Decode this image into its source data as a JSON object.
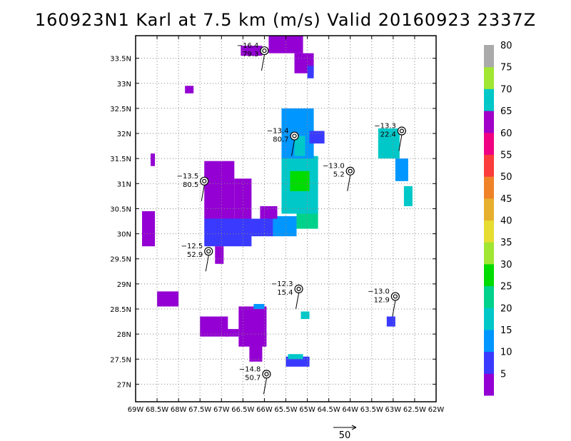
{
  "chart_data": {
    "type": "map",
    "title": "160923N1 Karl at 7.5 km (m/s) Valid 20160923 2337Z",
    "lon_ticks": [
      "69W",
      "68.5W",
      "68W",
      "67.5W",
      "67W",
      "66.5W",
      "66W",
      "65.5W",
      "65W",
      "64.5W",
      "64W",
      "63.5W",
      "63W",
      "62.5W",
      "62W"
    ],
    "lon_values": [
      -69,
      -68.5,
      -68,
      -67.5,
      -67,
      -66.5,
      -66,
      -65.5,
      -65,
      -64.5,
      -64,
      -63.5,
      -63,
      -62.5,
      -62
    ],
    "lat_ticks": [
      "27N",
      "27.5N",
      "28N",
      "28.5N",
      "29N",
      "29.5N",
      "30N",
      "30.5N",
      "31N",
      "31.5N",
      "32N",
      "32.5N",
      "33N",
      "33.5N"
    ],
    "lat_values": [
      27,
      27.5,
      28,
      28.5,
      29,
      29.5,
      30,
      30.5,
      31,
      31.5,
      32,
      32.5,
      33,
      33.5
    ],
    "xlim": [
      -69,
      -62
    ],
    "ylim": [
      26.65,
      33.95
    ],
    "grid": true,
    "colorbar": {
      "labels": [
        "5",
        "10",
        "15",
        "20",
        "25",
        "30",
        "35",
        "40",
        "45",
        "50",
        "55",
        "60",
        "65",
        "70",
        "75",
        "80"
      ],
      "colors": [
        "#9400d3",
        "#3a3aff",
        "#0096ff",
        "#00c8c8",
        "#00d28c",
        "#00dc00",
        "#a0e632",
        "#e6dc32",
        "#e6af2d",
        "#f08228",
        "#fa3c3c",
        "#f00082",
        "#a000c8",
        "#00c8c8",
        "#a0e632",
        "#aaaaaa"
      ]
    },
    "reference_vector_label": "50",
    "stations": [
      {
        "lon": -66.0,
        "lat": 33.65,
        "top": "−16.4",
        "bottom": "79.3"
      },
      {
        "lon": -65.3,
        "lat": 31.95,
        "top": "−13.4",
        "bottom": "80.7"
      },
      {
        "lon": -62.8,
        "lat": 32.05,
        "top": "−13.3",
        "bottom": "22.4"
      },
      {
        "lon": -67.4,
        "lat": 31.05,
        "top": "−13.5",
        "bottom": "80.5"
      },
      {
        "lon": -64.0,
        "lat": 31.25,
        "top": "−13.0",
        "bottom": "5.2"
      },
      {
        "lon": -67.3,
        "lat": 29.65,
        "top": "−12.5",
        "bottom": "52.9"
      },
      {
        "lon": -65.2,
        "lat": 28.9,
        "top": "−12.3",
        "bottom": "15.4"
      },
      {
        "lon": -62.95,
        "lat": 28.75,
        "top": "−13.0",
        "bottom": "12.9"
      },
      {
        "lon": -65.95,
        "lat": 27.2,
        "top": "−14.8",
        "bottom": "50.7"
      }
    ]
  }
}
